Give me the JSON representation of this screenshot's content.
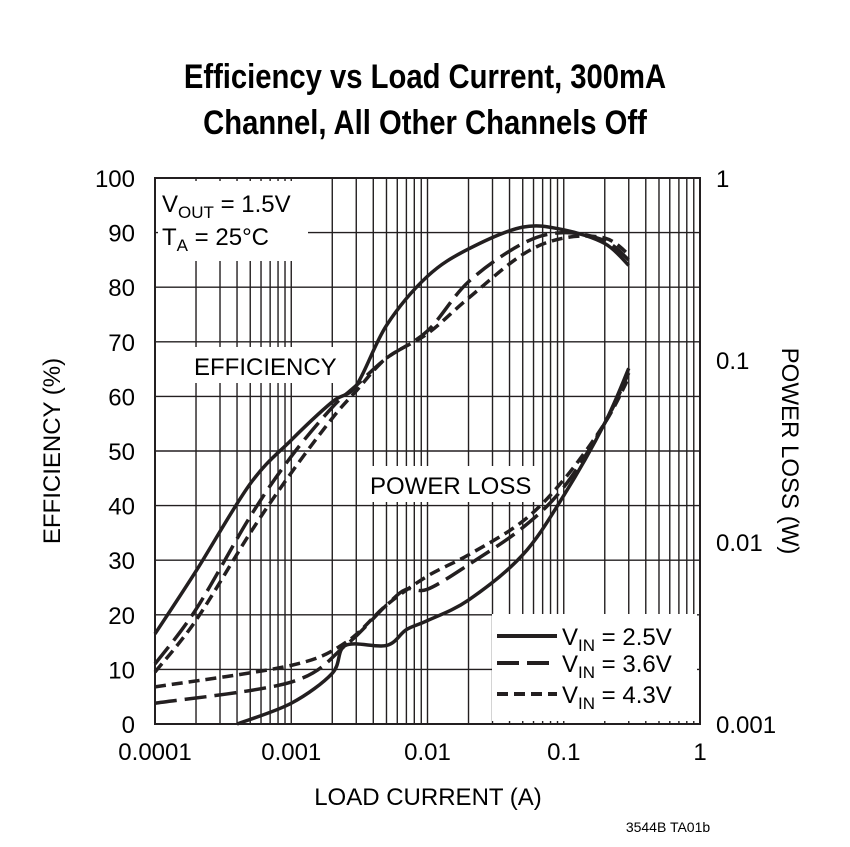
{
  "chart_data": {
    "type": "line",
    "title_line1": "Efficiency vs Load Current, 300mA",
    "title_line2": "Channel, All Other Channels Off",
    "xlabel": "LOAD CURRENT (A)",
    "ylabel_left": "EFFICIENCY (%)",
    "ylabel_right": "POWER LOSS (W)",
    "x_scale": "log",
    "xlim": [
      0.0001,
      1
    ],
    "ylim_left": [
      0,
      100
    ],
    "y_right_scale": "log",
    "ylim_right": [
      0.001,
      1
    ],
    "grid": true,
    "x_ticks": [
      "0.0001",
      "0.001",
      "0.01",
      "0.1",
      "1"
    ],
    "y_left_ticks": [
      "0",
      "10",
      "20",
      "30",
      "40",
      "50",
      "60",
      "70",
      "80",
      "90",
      "100"
    ],
    "y_right_ticks": [
      "0.001",
      "0.01",
      "0.1",
      "1"
    ],
    "annotations": {
      "vout": {
        "main": "V",
        "sub": "OUT",
        "rest": " = 1.5V"
      },
      "ta": {
        "main": "T",
        "sub": "A",
        "rest": " = 25°C"
      },
      "efficiency": "EFFICIENCY",
      "power_loss": "POWER LOSS"
    },
    "legend_position": "bottom-right",
    "legend": [
      {
        "main": "V",
        "sub": "IN",
        "rest": " = 2.5V",
        "dash": "solid"
      },
      {
        "main": "V",
        "sub": "IN",
        "rest": " = 3.6V",
        "dash": "long-dash"
      },
      {
        "main": "V",
        "sub": "IN",
        "rest": " = 4.3V",
        "dash": "short-dash"
      }
    ],
    "efficiency_series": [
      {
        "name": "VIN = 2.5V",
        "x": [
          0.0001,
          0.0002,
          0.0005,
          0.001,
          0.002,
          0.003,
          0.005,
          0.01,
          0.02,
          0.05,
          0.1,
          0.2,
          0.3
        ],
        "y": [
          16.5,
          28,
          44,
          52,
          59,
          62,
          73,
          82,
          87,
          91,
          90.5,
          88,
          84
        ]
      },
      {
        "name": "VIN = 3.6V",
        "x": [
          0.0001,
          0.0002,
          0.0005,
          0.001,
          0.002,
          0.003,
          0.005,
          0.01,
          0.02,
          0.05,
          0.1,
          0.2,
          0.3
        ],
        "y": [
          11,
          21,
          38,
          49,
          58,
          62,
          67,
          72,
          81,
          88,
          90,
          88.5,
          85
        ]
      },
      {
        "name": "VIN = 4.3V",
        "x": [
          0.0001,
          0.0002,
          0.0005,
          0.001,
          0.002,
          0.003,
          0.005,
          0.01,
          0.02,
          0.05,
          0.1,
          0.2,
          0.3
        ],
        "y": [
          9.5,
          19,
          35,
          46,
          56,
          61,
          67,
          71.5,
          78,
          86,
          89,
          89,
          86
        ]
      }
    ],
    "power_loss_series": [
      {
        "name": "VIN = 2.5V",
        "x": [
          0.0004,
          0.001,
          0.002,
          0.0025,
          0.005,
          0.007,
          0.01,
          0.02,
          0.05,
          0.1,
          0.2,
          0.3
        ],
        "y": [
          0.001,
          0.0013,
          0.0019,
          0.0027,
          0.0027,
          0.0033,
          0.0037,
          0.0048,
          0.0085,
          0.018,
          0.045,
          0.09
        ]
      },
      {
        "name": "VIN = 3.6V",
        "x": [
          0.0001,
          0.001,
          0.0025,
          0.005,
          0.007,
          0.01,
          0.02,
          0.05,
          0.1,
          0.2,
          0.3
        ],
        "y": [
          0.0013,
          0.0017,
          0.0027,
          0.0045,
          0.0055,
          0.0055,
          0.0075,
          0.012,
          0.02,
          0.045,
          0.085
        ]
      },
      {
        "name": "VIN = 4.3V",
        "x": [
          0.0001,
          0.001,
          0.0025,
          0.005,
          0.01,
          0.02,
          0.05,
          0.1,
          0.2,
          0.3
        ],
        "y": [
          0.0016,
          0.0021,
          0.0028,
          0.0045,
          0.0065,
          0.0085,
          0.013,
          0.022,
          0.045,
          0.08
        ]
      }
    ]
  },
  "figure_id": "3544B TA01b",
  "colors": {
    "line": "#231f20",
    "background": "#ffffff"
  }
}
